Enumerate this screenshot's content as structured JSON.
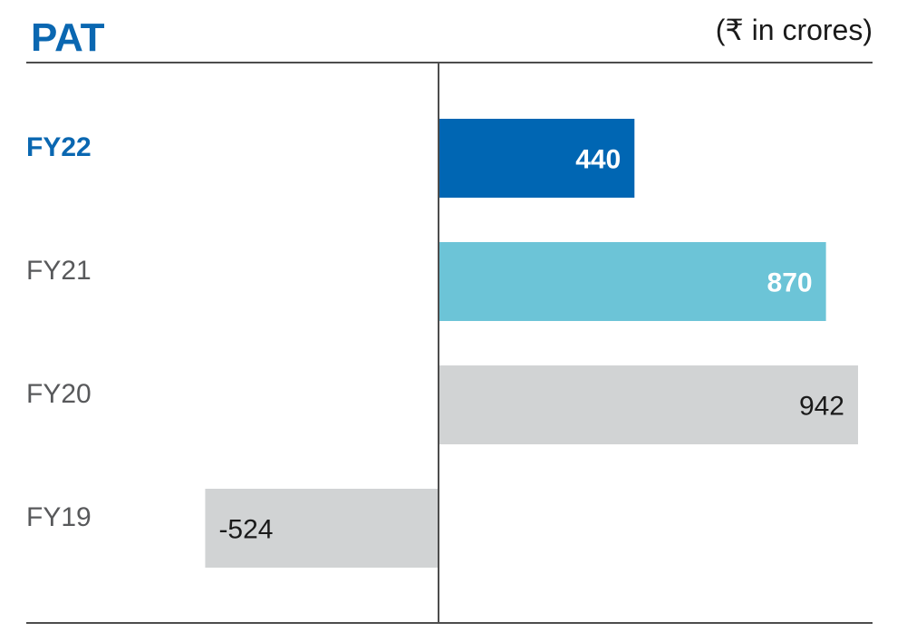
{
  "chart_data": {
    "type": "bar",
    "orientation": "horizontal",
    "title": "PAT",
    "unit_label": "(₹ in crores)",
    "categories": [
      "FY22",
      "FY21",
      "FY20",
      "FY19"
    ],
    "values": [
      440,
      870,
      942,
      -524
    ],
    "value_labels": [
      "440",
      "870",
      "942",
      "-524"
    ],
    "xlim": [
      -524,
      942
    ],
    "grid": false,
    "legend": "none",
    "bar_colors": [
      "#0066b3",
      "#6cc4d7",
      "#d1d3d4",
      "#d1d3d4"
    ],
    "label_colors": [
      "#ffffff",
      "#ffffff",
      "#1a1a1a",
      "#1a1a1a"
    ],
    "label_bold": [
      true,
      true,
      false,
      false
    ],
    "category_colors": [
      "#0a67b1",
      "#58595b",
      "#58595b",
      "#58595b"
    ],
    "category_bold": [
      true,
      false,
      false,
      false
    ]
  },
  "colors": {
    "title": "#0a67b1",
    "text": "#1a1a1a",
    "axis": "#4d4d4d"
  }
}
